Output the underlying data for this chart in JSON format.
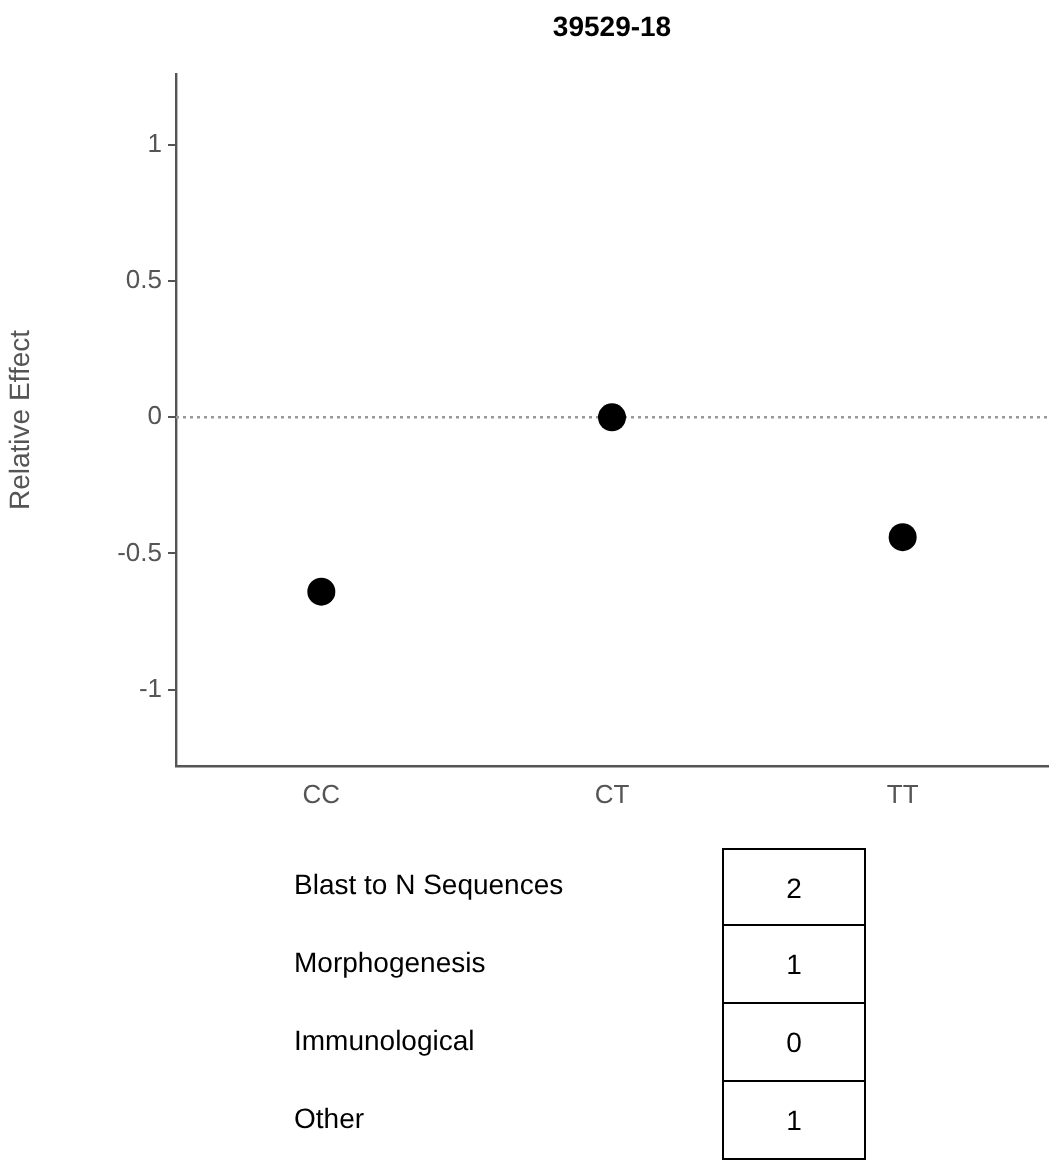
{
  "chart_data": {
    "type": "scatter",
    "title": "39529-18",
    "ylabel": "Relative Effect",
    "categories": [
      "CC",
      "CT",
      "TT"
    ],
    "series": [
      {
        "color": "#000000",
        "values": [
          -0.64,
          0,
          -0.44
        ]
      }
    ],
    "ylim": [
      -1.28,
      1.26
    ],
    "yticks": [
      -1,
      -0.5,
      0,
      0.5,
      1
    ],
    "grid": false,
    "legend": false,
    "marker": "circle",
    "ref_lines": [
      {
        "axis": "y",
        "value": 0,
        "color": "#999999",
        "line_style": "dotted"
      }
    ],
    "annotations": [
      "Blast to N Sequences",
      "2",
      "Morphogenesis",
      "1",
      "Immunological",
      "0",
      "Other",
      "1"
    ]
  }
}
